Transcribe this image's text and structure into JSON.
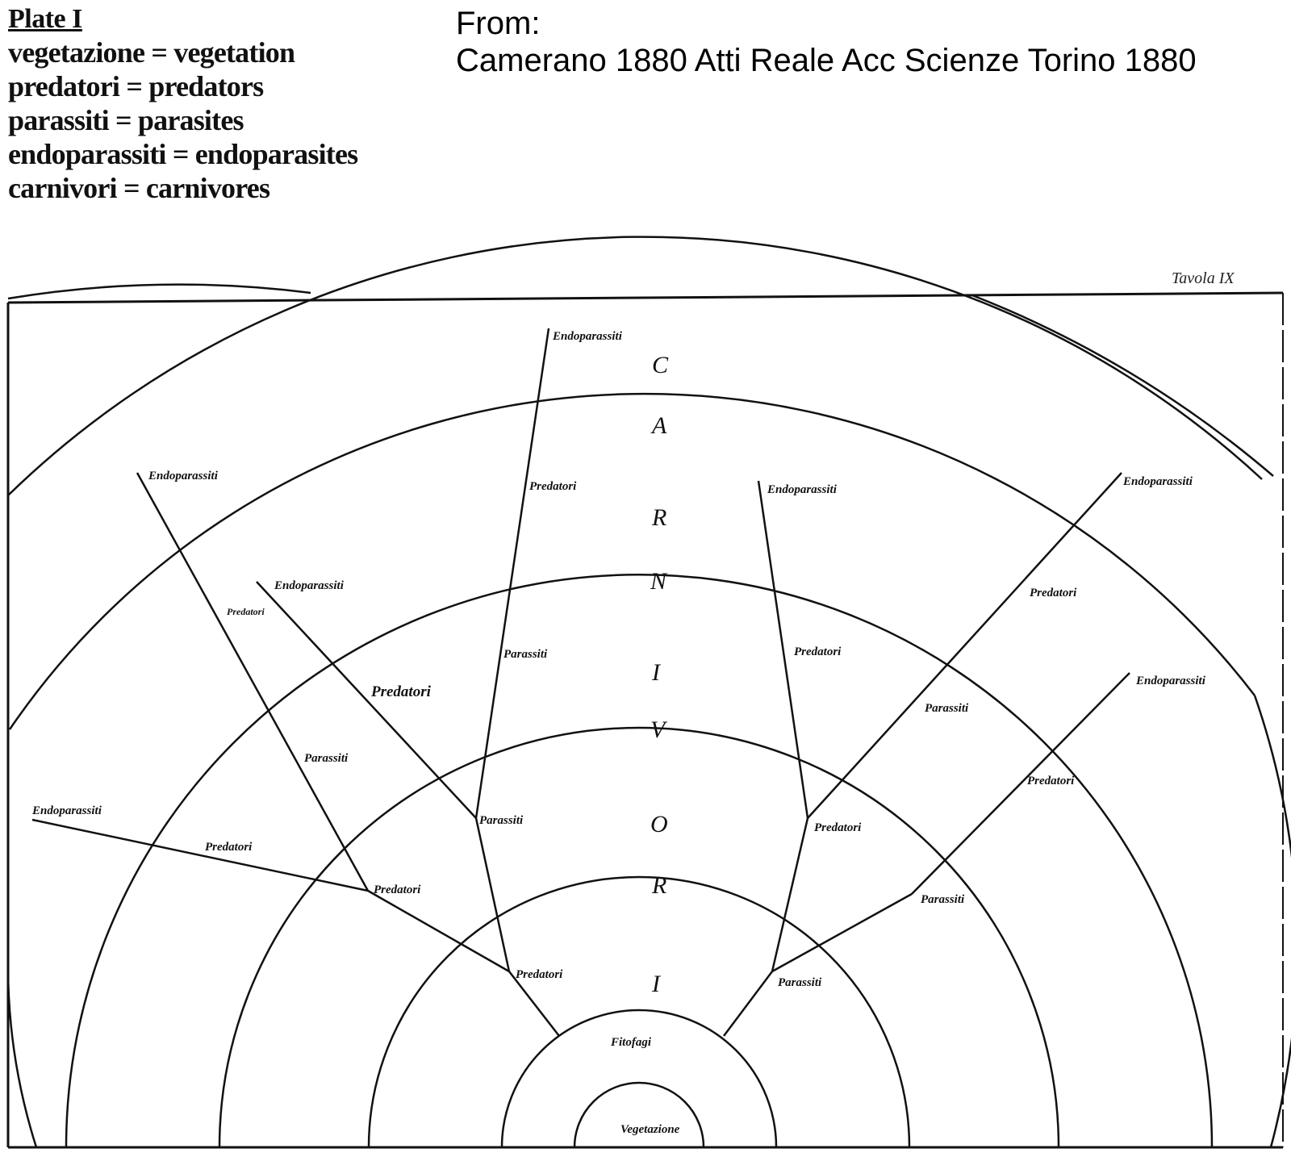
{
  "legend": {
    "title": "Plate I",
    "rows": [
      "vegetazione = vegetation",
      "predatori = predators",
      "parassiti = parasites",
      "endoparassiti = endoparasites",
      "carnivori = carnivores"
    ]
  },
  "source": {
    "line1": "From:",
    "line2": "Camerano 1880 Atti Reale Acc Scienze Torino 1880"
  },
  "plate": {
    "tavola": "Tavola IX",
    "center": "Vegetazione",
    "ring1": "Fitofagi",
    "vertical_letters": [
      "C",
      "A",
      "R",
      "N",
      "I",
      "V",
      "O",
      "R",
      "I"
    ],
    "labels": {
      "endo_top": "Endoparassiti",
      "pred_top": "Predatori",
      "paras_top": "Parassiti",
      "paras_left_mid": "Parassiti",
      "pred_bottom_left": "Predatori",
      "endo_left2": "Endoparassiti",
      "pred_left2": "Predatori",
      "endo_left1": "Endoparassiti",
      "pred_left1": "Predatori",
      "paras_left1": "Parassiti",
      "pred_left_junction": "Predatori",
      "endo_far_left": "Endoparassiti",
      "pred_far_left": "Predatori",
      "endo_mid_right": "Endoparassiti",
      "pred_mid_right": "Predatori",
      "pred_right_junction": "Predatori",
      "endo_right1": "Endoparassiti",
      "pred_right1": "Predatori",
      "paras_right1": "Parassiti",
      "endo_right2": "Endoparassiti",
      "pred_right2": "Predatori",
      "paras_right2": "Parassiti",
      "paras_bottom_right": "Parassiti"
    }
  }
}
